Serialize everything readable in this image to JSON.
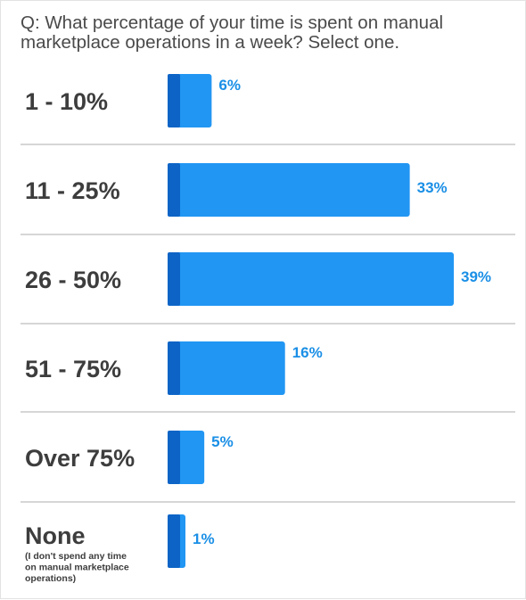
{
  "question": "Q: What percentage of your time is spent on manual marketplace operations in a week? Select one.",
  "colors": {
    "bar": "#2196f3",
    "bar_edge": "#0d64c6",
    "value_text": "#1a8fe6",
    "label_text": "#3d3d3d",
    "divider": "#c9c9c9"
  },
  "chart_data": {
    "type": "bar",
    "orientation": "horizontal",
    "categories": [
      "1 - 10%",
      "11 - 25%",
      "26 - 50%",
      "51 - 75%",
      "Over 75%",
      "None"
    ],
    "category_notes": [
      "",
      "",
      "",
      "",
      "",
      "(I don't spend any time on manual marketplace operations)"
    ],
    "values": [
      6,
      33,
      39,
      16,
      5,
      1
    ],
    "value_labels": [
      "6%",
      "33%",
      "39%",
      "16%",
      "5%",
      "1%"
    ],
    "xlim": [
      0,
      39
    ],
    "grid": false,
    "legend": "none"
  }
}
